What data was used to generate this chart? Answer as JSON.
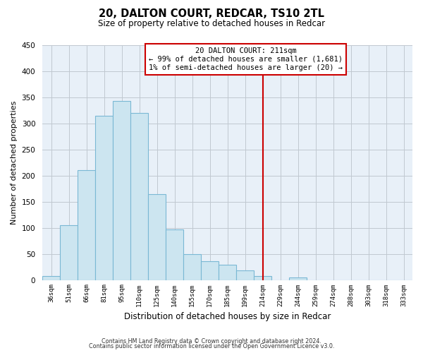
{
  "title": "20, DALTON COURT, REDCAR, TS10 2TL",
  "subtitle": "Size of property relative to detached houses in Redcar",
  "xlabel": "Distribution of detached houses by size in Redcar",
  "ylabel": "Number of detached properties",
  "bar_labels": [
    "36sqm",
    "51sqm",
    "66sqm",
    "81sqm",
    "95sqm",
    "110sqm",
    "125sqm",
    "140sqm",
    "155sqm",
    "170sqm",
    "185sqm",
    "199sqm",
    "214sqm",
    "229sqm",
    "244sqm",
    "259sqm",
    "274sqm",
    "288sqm",
    "303sqm",
    "318sqm",
    "333sqm"
  ],
  "bar_heights": [
    7,
    105,
    210,
    315,
    343,
    320,
    165,
    97,
    50,
    36,
    29,
    18,
    8,
    0,
    5,
    0,
    0,
    0,
    0,
    0,
    0
  ],
  "bar_color": "#cce5f0",
  "bar_edge_color": "#7ab8d4",
  "vline_color": "#cc0000",
  "annotation_title": "20 DALTON COURT: 211sqm",
  "annotation_line1": "← 99% of detached houses are smaller (1,681)",
  "annotation_line2": "1% of semi-detached houses are larger (20) →",
  "annotation_box_facecolor": "#ffffff",
  "annotation_box_edge": "#cc0000",
  "ylim": [
    0,
    450
  ],
  "yticks": [
    0,
    50,
    100,
    150,
    200,
    250,
    300,
    350,
    400,
    450
  ],
  "footer1": "Contains HM Land Registry data © Crown copyright and database right 2024.",
  "footer2": "Contains public sector information licensed under the Open Government Licence v3.0.",
  "background_color": "#ffffff",
  "plot_bg_color": "#e8f0f8",
  "grid_color": "#c0c8d0"
}
